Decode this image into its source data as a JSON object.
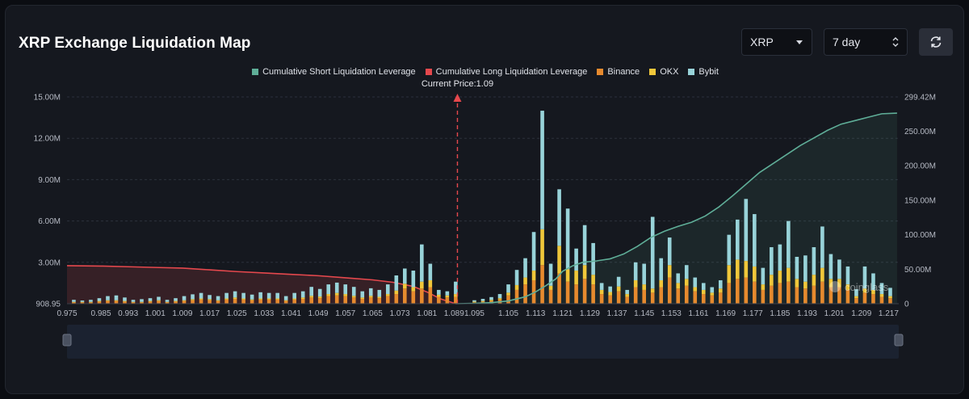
{
  "page": {
    "title": "XRP Exchange Liquidation Map"
  },
  "controls": {
    "coin": "XRP",
    "range": "7 day"
  },
  "icons": {
    "refresh": "refresh-icon",
    "dropdown": "chevron-down-icon",
    "stepper": "updown-icon"
  },
  "watermark": "coinglass",
  "chart_data": {
    "type": "bar",
    "stacked": true,
    "legend_position": "top-center",
    "legend": [
      {
        "name": "Cumulative Short Liquidation Leverage",
        "color": "#5fae98"
      },
      {
        "name": "Cumulative Long Liquidation Leverage",
        "color": "#e5484d"
      },
      {
        "name": "Binance",
        "color": "#e68a2e"
      },
      {
        "name": "OKX",
        "color": "#f0c73a"
      },
      {
        "name": "Bybit",
        "color": "#98d3d9"
      }
    ],
    "current_price": 1.09,
    "current_price_label": "Current Price:1.09",
    "x_range": [
      0.975,
      1.22
    ],
    "x_ticks": [
      "0.975",
      "0.985",
      "0.993",
      "1.001",
      "1.009",
      "1.017",
      "1.025",
      "1.033",
      "1.041",
      "1.049",
      "1.057",
      "1.065",
      "1.073",
      "1.081",
      "1.089",
      "1.095",
      "1.105",
      "1.113",
      "1.121",
      "1.129",
      "1.137",
      "1.145",
      "1.153",
      "1.161",
      "1.169",
      "1.177",
      "1.185",
      "1.193",
      "1.201",
      "1.209",
      "1.217"
    ],
    "y_left": {
      "min": 0,
      "max": 15000000,
      "ticks": [
        908.95,
        3000000,
        6000000,
        9000000,
        12000000,
        15000000
      ],
      "tick_labels": [
        "908.95",
        "3.00M",
        "6.00M",
        "9.00M",
        "12.00M",
        "15.00M"
      ]
    },
    "y_right": {
      "min": 0,
      "max": 299420000,
      "ticks": [
        0,
        50000000,
        100000000,
        150000000,
        200000000,
        250000000,
        299420000
      ],
      "tick_labels": [
        "0",
        "50.00M",
        "100.00M",
        "150.00M",
        "200.00M",
        "250.00M",
        "299.42M"
      ]
    },
    "bars": {
      "price": [
        0.977,
        0.9795,
        0.982,
        0.9845,
        0.987,
        0.9895,
        0.992,
        0.9945,
        0.997,
        0.9995,
        1.002,
        1.0045,
        1.007,
        1.0095,
        1.012,
        1.0145,
        1.017,
        1.0195,
        1.022,
        1.0245,
        1.027,
        1.0295,
        1.032,
        1.0345,
        1.037,
        1.0395,
        1.042,
        1.0445,
        1.047,
        1.0495,
        1.052,
        1.0545,
        1.057,
        1.0595,
        1.062,
        1.0645,
        1.067,
        1.0695,
        1.072,
        1.0745,
        1.077,
        1.0795,
        1.082,
        1.0845,
        1.087,
        1.0895,
        1.0925,
        1.095,
        1.0975,
        1.1,
        1.1025,
        1.105,
        1.1075,
        1.11,
        1.1125,
        1.115,
        1.1175,
        1.12,
        1.1225,
        1.125,
        1.1275,
        1.13,
        1.1325,
        1.135,
        1.1375,
        1.14,
        1.1425,
        1.145,
        1.1475,
        1.15,
        1.1525,
        1.155,
        1.1575,
        1.16,
        1.1625,
        1.165,
        1.1675,
        1.17,
        1.1725,
        1.175,
        1.1775,
        1.18,
        1.1825,
        1.185,
        1.1875,
        1.19,
        1.1925,
        1.195,
        1.1975,
        1.2,
        1.2025,
        1.205,
        1.2075,
        1.21,
        1.2125,
        1.215,
        1.2175
      ],
      "Binance": [
        0.1,
        0.1,
        0.1,
        0.15,
        0.2,
        0.2,
        0.15,
        0.1,
        0.1,
        0.15,
        0.2,
        0.1,
        0.15,
        0.2,
        0.25,
        0.3,
        0.25,
        0.2,
        0.3,
        0.35,
        0.3,
        0.25,
        0.3,
        0.3,
        0.3,
        0.2,
        0.3,
        0.35,
        0.45,
        0.4,
        0.55,
        0.6,
        0.55,
        0.45,
        0.35,
        0.45,
        0.4,
        0.55,
        0.7,
        1.1,
        0.9,
        1.1,
        1.2,
        0.5,
        0.45,
        0.5,
        0,
        0.1,
        0.15,
        0.2,
        0.3,
        0.6,
        1.0,
        1.4,
        1.7,
        2.8,
        1.0,
        2.2,
        1.6,
        1.4,
        1.8,
        1.4,
        0.7,
        0.6,
        0.9,
        0.5,
        1.2,
        1.0,
        0.8,
        1.2,
        1.9,
        1.1,
        1.3,
        0.9,
        0.7,
        0.6,
        0.8,
        1.5,
        1.8,
        1.9,
        1.6,
        1.0,
        1.3,
        1.5,
        1.6,
        1.2,
        1.1,
        1.3,
        1.6,
        1.2,
        1.2,
        1.0,
        0.4,
        0.8,
        0.7,
        0.5,
        0.4
      ],
      "OKX": [
        0.03,
        0.03,
        0.03,
        0.05,
        0.05,
        0.05,
        0.05,
        0.03,
        0.03,
        0.05,
        0.05,
        0.03,
        0.05,
        0.05,
        0.08,
        0.08,
        0.08,
        0.05,
        0.08,
        0.1,
        0.08,
        0.06,
        0.08,
        0.08,
        0.08,
        0.05,
        0.08,
        0.1,
        0.12,
        0.12,
        0.15,
        0.18,
        0.15,
        0.12,
        0.1,
        0.12,
        0.1,
        0.15,
        0.25,
        0.35,
        0.3,
        0.5,
        0.5,
        0.15,
        0.15,
        0.2,
        0,
        0.05,
        0.05,
        0.08,
        0.1,
        0.2,
        0.35,
        0.5,
        0.7,
        2.6,
        0.3,
        2.0,
        0.9,
        1.0,
        1.0,
        0.7,
        0.3,
        0.25,
        0.35,
        0.2,
        0.5,
        0.4,
        0.3,
        0.5,
        0.9,
        0.4,
        0.5,
        0.3,
        0.3,
        0.2,
        0.3,
        1.3,
        1.4,
        1.2,
        1.1,
        0.4,
        0.8,
        0.9,
        1.0,
        0.6,
        0.5,
        0.8,
        1.0,
        0.6,
        0.6,
        0.4,
        0.15,
        0.3,
        0.3,
        0.2,
        0.15
      ],
      "Bybit": [
        0.15,
        0.1,
        0.15,
        0.2,
        0.3,
        0.35,
        0.25,
        0.15,
        0.2,
        0.2,
        0.25,
        0.15,
        0.2,
        0.3,
        0.35,
        0.4,
        0.3,
        0.3,
        0.4,
        0.45,
        0.4,
        0.35,
        0.45,
        0.4,
        0.4,
        0.3,
        0.4,
        0.45,
        0.65,
        0.55,
        0.7,
        0.75,
        0.7,
        0.65,
        0.45,
        0.55,
        0.5,
        0.7,
        1.1,
        1.1,
        1.2,
        2.7,
        1.2,
        0.35,
        0.3,
        0.9,
        0,
        0.1,
        0.15,
        0.2,
        0.3,
        0.6,
        1.1,
        1.4,
        2.8,
        8.6,
        1.6,
        4.1,
        4.4,
        1.6,
        2.9,
        2.3,
        0.5,
        0.4,
        0.7,
        0.3,
        1.3,
        1.5,
        5.2,
        1.6,
        2.0,
        0.7,
        1.0,
        0.7,
        0.5,
        0.4,
        0.6,
        2.2,
        2.9,
        4.5,
        3.8,
        1.2,
        2.0,
        1.9,
        3.4,
        1.6,
        1.9,
        2.0,
        3.0,
        1.8,
        1.4,
        1.3,
        0.5,
        1.6,
        1.2,
        0.8,
        0.6
      ]
    },
    "cumulative_long": {
      "price": [
        0.975,
        0.985,
        0.993,
        1.001,
        1.009,
        1.017,
        1.025,
        1.033,
        1.041,
        1.049,
        1.057,
        1.065,
        1.071,
        1.077,
        1.081,
        1.085,
        1.0895
      ],
      "value": [
        55000000,
        54500000,
        53500000,
        52500000,
        51500000,
        49000000,
        46500000,
        44500000,
        42500000,
        40500000,
        37500000,
        34500000,
        31000000,
        25000000,
        17000000,
        7000000,
        0
      ]
    },
    "cumulative_short": {
      "price": [
        1.0895,
        1.095,
        1.1,
        1.105,
        1.11,
        1.113,
        1.116,
        1.119,
        1.121,
        1.124,
        1.127,
        1.131,
        1.135,
        1.139,
        1.143,
        1.147,
        1.151,
        1.155,
        1.159,
        1.163,
        1.167,
        1.171,
        1.175,
        1.179,
        1.183,
        1.187,
        1.191,
        1.195,
        1.199,
        1.203,
        1.207,
        1.211,
        1.215,
        1.2195
      ],
      "value": [
        0,
        500000,
        1500000,
        4000000,
        10000000,
        17000000,
        26000000,
        36000000,
        47000000,
        55000000,
        60000000,
        62000000,
        65000000,
        72000000,
        83000000,
        96000000,
        105000000,
        112000000,
        118000000,
        127000000,
        140000000,
        156000000,
        173000000,
        190000000,
        203000000,
        216000000,
        229000000,
        240000000,
        251000000,
        260000000,
        265000000,
        270000000,
        275000000,
        276000000
      ]
    }
  }
}
